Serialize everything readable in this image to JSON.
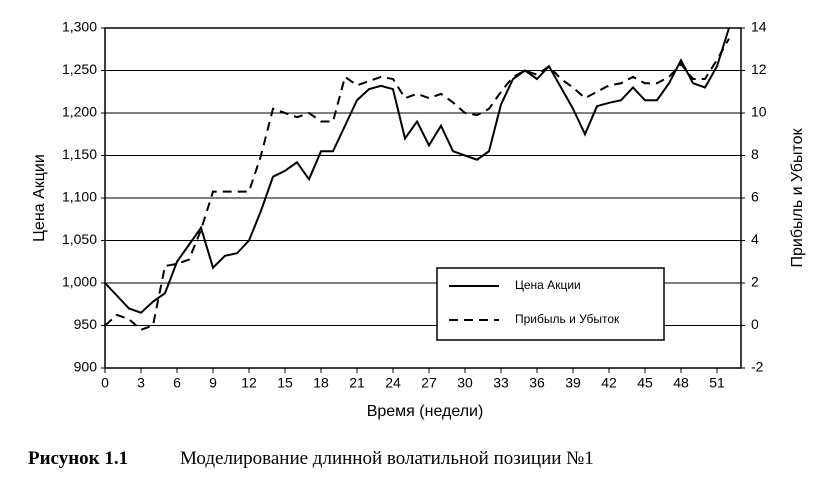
{
  "chart_data": {
    "type": "line",
    "xlabel": "Время (недели)",
    "ylabel": "Цена Акции",
    "y2label": "Прибыль и Убыток",
    "x": [
      0,
      1,
      2,
      3,
      4,
      5,
      6,
      7,
      8,
      9,
      10,
      11,
      12,
      13,
      14,
      15,
      16,
      17,
      18,
      19,
      20,
      21,
      22,
      23,
      24,
      25,
      26,
      27,
      28,
      29,
      30,
      31,
      32,
      33,
      34,
      35,
      36,
      37,
      38,
      39,
      40,
      41,
      42,
      43,
      44,
      45,
      46,
      47,
      48,
      49,
      50,
      51,
      52
    ],
    "xlim": [
      0,
      53
    ],
    "xticks": [
      0,
      3,
      6,
      9,
      12,
      15,
      18,
      21,
      24,
      27,
      30,
      33,
      36,
      39,
      42,
      45,
      48,
      51
    ],
    "ylim": [
      900,
      1300
    ],
    "yticks": [
      900,
      950,
      {
        "value": 1000,
        "label": "1,000"
      },
      {
        "value": 1050,
        "label": "1,050"
      },
      {
        "value": 1100,
        "label": "1,100"
      },
      {
        "value": 1150,
        "label": "1,150"
      },
      {
        "value": 1200,
        "label": "1,200"
      },
      {
        "value": 1250,
        "label": "1,250"
      },
      {
        "value": 1300,
        "label": "1,300"
      }
    ],
    "y2lim": [
      -2,
      14
    ],
    "y2ticks": [
      -2,
      0,
      2,
      4,
      6,
      8,
      10,
      12,
      14
    ],
    "grid": true,
    "legend": "lower right",
    "series": [
      {
        "name": "Цена Акции",
        "color": "#000000",
        "dash": "solid",
        "values": [
          1000,
          985,
          970,
          965,
          978,
          988,
          1025,
          1045,
          1065,
          1018,
          1032,
          1035,
          1050,
          1085,
          1125,
          1132,
          1142,
          1122,
          1155,
          1155,
          1185,
          1215,
          1228,
          1232,
          1228,
          1170,
          1190,
          1162,
          1185,
          1155,
          1150,
          1145,
          1155,
          1210,
          1240,
          1250,
          1240,
          1255,
          1230,
          1205,
          1175,
          1208,
          1212,
          1215,
          1230,
          1215,
          1215,
          1235,
          1262,
          1235,
          1230,
          1255,
          1300
        ]
      },
      {
        "name": "Прибыль и Убыток",
        "color": "#000000",
        "dash": "dashed",
        "axis": "y2",
        "values": [
          0,
          0.5,
          0.3,
          -0.2,
          0,
          2.8,
          2.9,
          3.1,
          4.5,
          6.3,
          6.3,
          6.3,
          6.3,
          8,
          10.2,
          10,
          9.8,
          10,
          9.6,
          9.6,
          11.7,
          11.3,
          11.5,
          11.7,
          11.6,
          10.7,
          10.9,
          10.7,
          10.9,
          10.5,
          10,
          9.9,
          10.2,
          11,
          11.7,
          12,
          11.8,
          12.2,
          11.6,
          11.2,
          10.7,
          11,
          11.3,
          11.4,
          11.7,
          11.4,
          11.4,
          11.7,
          12.3,
          11.6,
          11.6,
          12.5,
          13.5
        ]
      }
    ]
  },
  "caption": {
    "label": "Рисунок 1.1",
    "text": "Моделирование длинной волатильной позиции №1"
  }
}
